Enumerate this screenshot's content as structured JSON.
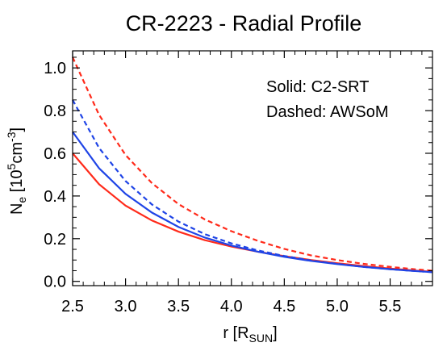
{
  "chart_data": {
    "type": "line",
    "title": "CR-2223 - Radial Profile",
    "xlabel": {
      "main": "r [R",
      "sub": "SUN",
      "close": "]"
    },
    "ylabel": {
      "n": "N",
      "nsub": "e",
      "open": " [10",
      "sup1": "5",
      "unit": "cm",
      "sup2": "-3",
      "close": "]"
    },
    "xlim": [
      2.5,
      5.9
    ],
    "ylim": [
      -0.02,
      1.08
    ],
    "xticks": [
      2.5,
      3.0,
      3.5,
      4.0,
      4.5,
      5.0,
      5.5
    ],
    "xtick_labels": [
      "2.5",
      "3.0",
      "3.5",
      "4.0",
      "4.5",
      "5.0",
      "5.5"
    ],
    "yticks": [
      0.0,
      0.2,
      0.4,
      0.6,
      0.8,
      1.0
    ],
    "ytick_labels": [
      "0.0",
      "0.2",
      "0.4",
      "0.6",
      "0.8",
      "1.0"
    ],
    "grid": false,
    "annotations": [
      "Solid: C2-SRT",
      "Dashed: AWSoM"
    ],
    "x": [
      2.5,
      2.75,
      3.0,
      3.25,
      3.5,
      3.75,
      4.0,
      4.25,
      4.5,
      4.75,
      5.0,
      5.25,
      5.5,
      5.75,
      5.9
    ],
    "series": [
      {
        "color": "#ff2a1a",
        "style": "solid",
        "values": [
          0.6,
          0.455,
          0.355,
          0.285,
          0.233,
          0.193,
          0.163,
          0.139,
          0.118,
          0.1,
          0.085,
          0.072,
          0.06,
          0.05,
          0.045
        ]
      },
      {
        "color": "#1f44e6",
        "style": "solid",
        "values": [
          0.7,
          0.53,
          0.41,
          0.322,
          0.255,
          0.205,
          0.168,
          0.139,
          0.115,
          0.096,
          0.081,
          0.068,
          0.057,
          0.048,
          0.043
        ]
      },
      {
        "color": "#ff2a1a",
        "style": "dashed",
        "values": [
          1.05,
          0.78,
          0.592,
          0.46,
          0.362,
          0.29,
          0.235,
          0.19,
          0.152,
          0.122,
          0.1,
          0.082,
          0.068,
          0.056,
          0.05
        ]
      },
      {
        "color": "#1f44e6",
        "style": "dashed",
        "values": [
          0.85,
          0.625,
          0.47,
          0.36,
          0.28,
          0.221,
          0.178,
          0.145,
          0.119,
          0.098,
          0.082,
          0.068,
          0.057,
          0.048,
          0.043
        ]
      }
    ]
  }
}
